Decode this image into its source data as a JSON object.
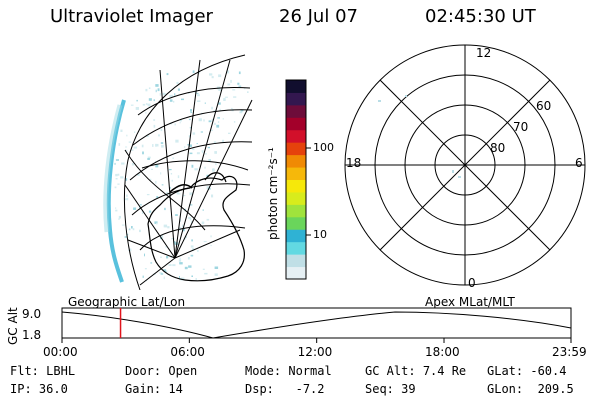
{
  "header": {
    "instrument": "Ultraviolet Imager",
    "date": "26 Jul 07",
    "time": "02:45:30 UT"
  },
  "colorbar": {
    "unit_label": "photon cm⁻²s⁻¹",
    "ticks": [
      "100",
      "10"
    ],
    "colors": [
      "#e6f0f4",
      "#c0dfe6",
      "#62d9e2",
      "#2fb2d4",
      "#6ad55b",
      "#a0e33c",
      "#d8ec1c",
      "#f6e80a",
      "#f6b80a",
      "#f08a04",
      "#e5420c",
      "#d2102a",
      "#a3002a",
      "#6d0c3a",
      "#33174f",
      "#110e2e"
    ]
  },
  "polar_plot": {
    "mlt_labels": [
      "12",
      "18",
      "6",
      "0"
    ],
    "lat_labels": [
      "60",
      "70",
      "80"
    ]
  },
  "timeline": {
    "left_label": "Geographic Lat/Lon",
    "right_label": "Apex MLat/MLT",
    "y_axis_title": "GC Alt",
    "y_ticks": [
      "9.0",
      "1.8"
    ],
    "x_ticks": [
      "00:00",
      "06:00",
      "12:00",
      "18:00",
      "23:59"
    ],
    "cursor_time": "02:45:30"
  },
  "status": {
    "flt_label": "Flt:",
    "flt_value": "LBHL",
    "ip_label": "IP:",
    "ip_value": "36.0",
    "door_label": "Door:",
    "door_value": "Open",
    "gain_label": "Gain:",
    "gain_value": "14",
    "mode_label": "Mode:",
    "mode_value": "Normal",
    "dsp_label": "Dsp:",
    "dsp_value": "-7.2",
    "gcalt_label": "GC Alt:",
    "gcalt_value": "7.4 Re",
    "seq_label": "Seq:",
    "seq_value": "39",
    "glat_label": "GLat:",
    "glat_value": "-60.4",
    "glon_label": "GLon:",
    "glon_value": "209.5"
  }
}
